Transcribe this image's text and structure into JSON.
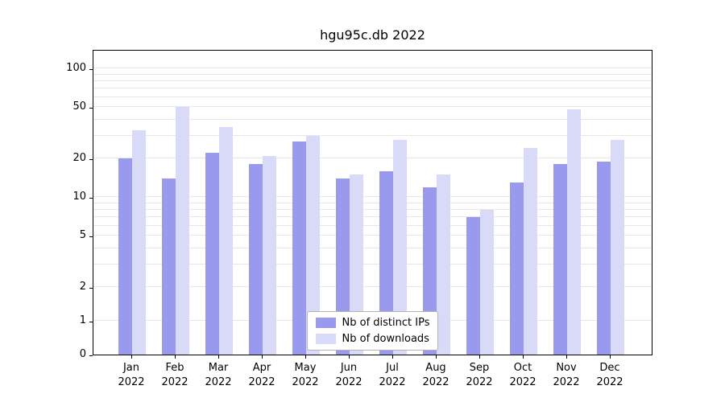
{
  "chart_data": {
    "type": "bar",
    "title": "hgu95c.db 2022",
    "year": "2022",
    "categories": [
      "Jan",
      "Feb",
      "Mar",
      "Apr",
      "May",
      "Jun",
      "Jul",
      "Aug",
      "Sep",
      "Oct",
      "Nov",
      "Dec"
    ],
    "series": [
      {
        "name": "Nb of distinct IPs",
        "color": "#9999ee",
        "values": [
          20,
          14,
          22,
          18,
          27,
          14,
          16,
          12,
          7,
          13,
          18,
          19
        ]
      },
      {
        "name": "Nb of downloads",
        "color": "#d9daf8",
        "values": [
          33,
          50,
          35,
          21,
          30,
          15,
          28,
          15,
          8,
          24,
          48,
          28
        ]
      }
    ],
    "y_axis": {
      "scale": "symlog",
      "ticks": [
        0,
        1,
        2,
        5,
        10,
        20,
        50,
        100
      ],
      "gridlines": [
        1,
        2,
        3,
        4,
        5,
        6,
        7,
        8,
        9,
        10,
        20,
        30,
        40,
        50,
        60,
        70,
        80,
        90,
        100
      ],
      "range": [
        0,
        140
      ]
    },
    "legend": {
      "position": "lower center"
    },
    "grid_color": "#e7e7e7",
    "axis_color": "#000000",
    "background": "#ffffff"
  }
}
